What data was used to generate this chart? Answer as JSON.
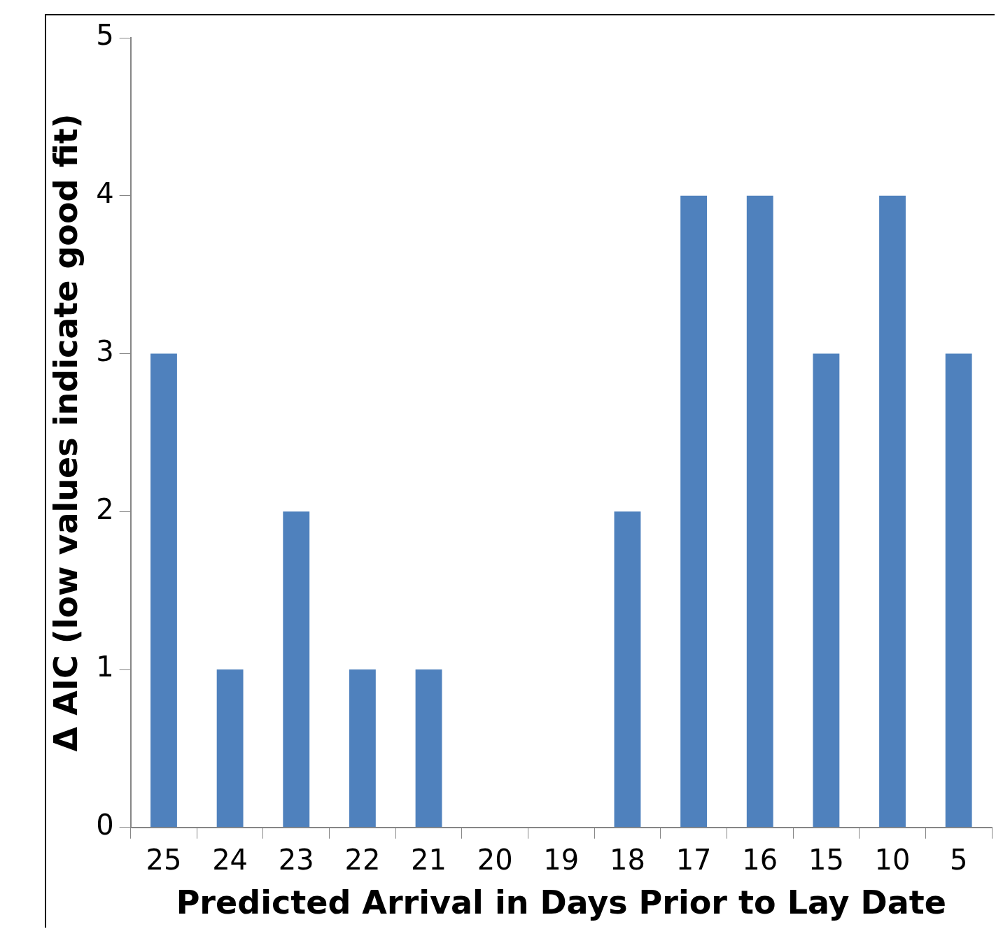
{
  "chart_data": {
    "type": "bar",
    "xlabel": "Predicted Arrival in Days Prior to Lay Date",
    "ylabel": "Δ AIC (low values indicate good fit)",
    "categories": [
      "25",
      "24",
      "23",
      "22",
      "21",
      "20",
      "19",
      "18",
      "17",
      "16",
      "15",
      "10",
      "5"
    ],
    "values": [
      3,
      1,
      2,
      1,
      1,
      0,
      0,
      2,
      4,
      4,
      3,
      4,
      3
    ],
    "color": "#4f81bd",
    "ylim": [
      0,
      5
    ],
    "yticks": [
      0,
      1,
      2,
      3,
      4,
      5
    ],
    "grid": false,
    "legend": false
  }
}
